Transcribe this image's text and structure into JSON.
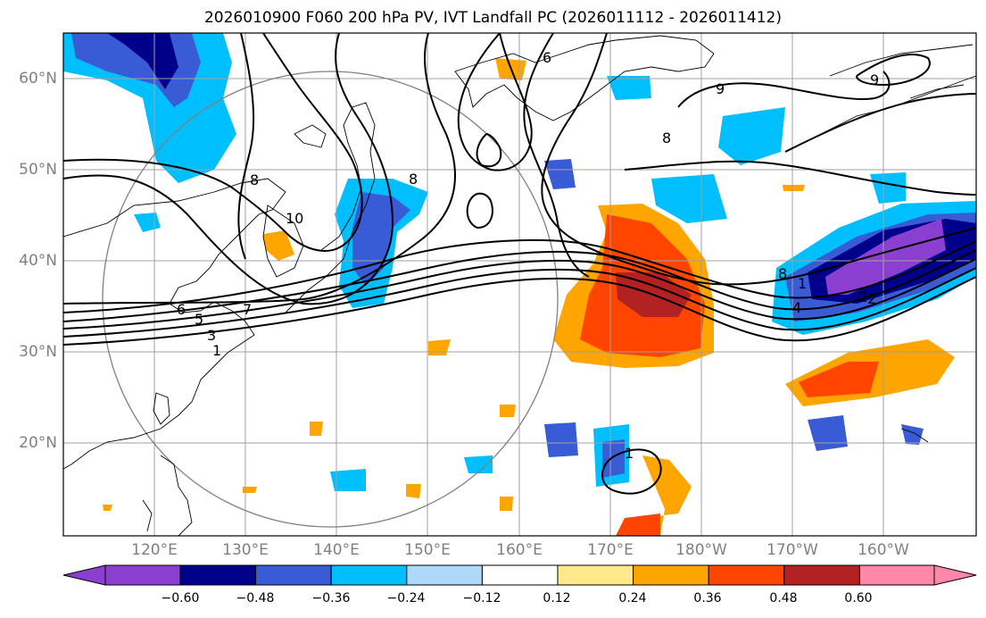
{
  "title": "2026010900 F060 200 hPa PV, IVT Landfall PC (2026011112 - 2026011412)",
  "lat_labels": [
    "60°N",
    "50°N",
    "40°N",
    "30°N",
    "20°N"
  ],
  "lon_labels": [
    "120°E",
    "130°E",
    "140°E",
    "150°E",
    "160°E",
    "170°E",
    "180°W",
    "170°W",
    "160°W"
  ],
  "contour_labels": [
    "1",
    "2",
    "3",
    "5",
    "6",
    "7",
    "8",
    "8",
    "9",
    "9",
    "10",
    "8",
    "1",
    "4",
    "2",
    "8",
    "1",
    "6"
  ],
  "colorbar": {
    "ticks": [
      "−0.60",
      "−0.48",
      "−0.36",
      "−0.24",
      "−0.12",
      "0.12",
      "0.24",
      "0.36",
      "0.48",
      "0.60"
    ],
    "colors": [
      "#8b3fd1",
      "#00008b",
      "#3a5bd6",
      "#00bfff",
      "#add8f7",
      "#ffffff",
      "#ffe98a",
      "#ffa500",
      "#ff4500",
      "#b22222",
      "#ff88aa"
    ]
  },
  "colors": {
    "grid": "#a0a0a0",
    "coast": "#000000",
    "contour": "#000000",
    "circle": "#808080"
  }
}
